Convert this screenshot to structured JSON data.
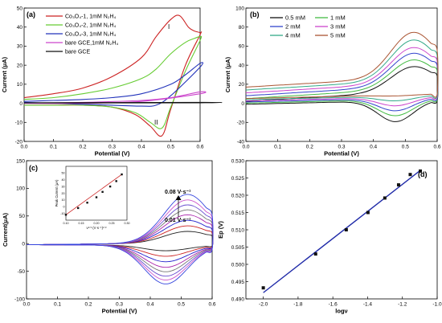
{
  "figure": {
    "panel_labels": [
      "(a)",
      "(b)",
      "(c)",
      "(d)"
    ]
  },
  "chart_data": [
    {
      "panel": "(a)",
      "type": "line",
      "xlabel": "Potential (V)",
      "ylabel": "Current (μA)",
      "xlim": [
        0.0,
        0.6
      ],
      "ylim": [
        -20,
        50
      ],
      "xticks": [
        "0.0",
        "0.1",
        "0.2",
        "0.3",
        "0.4",
        "0.5",
        "0.6"
      ],
      "yticks": [
        "-20",
        "-10",
        "0",
        "10",
        "20",
        "30",
        "40",
        "50"
      ],
      "legend": "top-left",
      "annotations": [
        "I",
        "II"
      ],
      "series": [
        {
          "name": "Co₃O₄-1,   1mM N₂H₄",
          "color": "#cc2222",
          "anodic": {
            "x": [
              0.0,
              0.1,
              0.2,
              0.3,
              0.4,
              0.45,
              0.5,
              0.53,
              0.56,
              0.58,
              0.6
            ],
            "y": [
              3,
              5,
              8,
              14,
              24,
              35,
              44,
              46,
              40,
              38,
              37
            ]
          },
          "cathodic": {
            "x": [
              0.6,
              0.55,
              0.5,
              0.47,
              0.43,
              0.38,
              0.3,
              0.2,
              0.1,
              0.0
            ],
            "y": [
              36,
              20,
              -3,
              -17,
              -12,
              -6,
              -2,
              -1,
              -1,
              -1
            ]
          }
        },
        {
          "name": "Co₃O₄-2,   1mM N₂H₄",
          "color": "#66cc33",
          "anodic": {
            "x": [
              0.0,
              0.1,
              0.2,
              0.3,
              0.4,
              0.45,
              0.5,
              0.55,
              0.58,
              0.6
            ],
            "y": [
              2,
              3,
              5,
              8,
              13,
              18,
              26,
              32,
              34,
              35
            ]
          },
          "cathodic": {
            "x": [
              0.6,
              0.55,
              0.5,
              0.47,
              0.43,
              0.38,
              0.3,
              0.2,
              0.1,
              0.0
            ],
            "y": [
              33,
              17,
              -2,
              -13,
              -10,
              -5,
              -2,
              -1,
              -1,
              -1
            ]
          }
        },
        {
          "name": "Co₃O₄-3,   1mM N₂H₄",
          "color": "#2233bb",
          "anodic": {
            "x": [
              0.0,
              0.1,
              0.2,
              0.3,
              0.4,
              0.5,
              0.55,
              0.6
            ],
            "y": [
              1,
              1.5,
              2,
              3,
              5,
              10,
              15,
              21
            ]
          },
          "cathodic": {
            "x": [
              0.6,
              0.5,
              0.45,
              0.4,
              0.3,
              0.2,
              0.1,
              0.0
            ],
            "y": [
              19,
              4,
              -1,
              -1.5,
              -1,
              -0.5,
              0,
              0.5
            ]
          }
        },
        {
          "name": "bare GCE,1mM N₂H₄",
          "color": "#cc44cc",
          "anodic": {
            "x": [
              0.0,
              0.2,
              0.4,
              0.5,
              0.6
            ],
            "y": [
              0,
              0.5,
              1.5,
              3,
              6
            ]
          },
          "cathodic": {
            "x": [
              0.6,
              0.4,
              0.2,
              0.0
            ],
            "y": [
              5,
              1,
              0,
              0
            ]
          }
        },
        {
          "name": "bare GCE",
          "color": "#111111",
          "anodic": {
            "x": [
              0.0,
              0.6
            ],
            "y": [
              0.3,
              0.5
            ]
          },
          "cathodic": {
            "x": [
              0.6,
              0.0
            ],
            "y": [
              0.3,
              0.2
            ]
          }
        }
      ]
    },
    {
      "panel": "(b)",
      "type": "line",
      "xlabel": "Potential (V)",
      "ylabel": "Current (μA)",
      "xlim": [
        0.0,
        0.6
      ],
      "ylim": [
        -40,
        100
      ],
      "xticks": [
        "0.0",
        "0.1",
        "0.2",
        "0.3",
        "0.4",
        "0.5",
        "0.6"
      ],
      "yticks": [
        "-40",
        "-20",
        "0",
        "20",
        "40",
        "60",
        "80",
        "100"
      ],
      "legend": "top-left",
      "series": [
        {
          "name": "0.5 mM",
          "color": "#111111",
          "anodic_peak": 40,
          "cathodic_peak": -20
        },
        {
          "name": "1 mM",
          "color": "#44bb44",
          "anodic_peak": 47,
          "cathodic_peak": -15
        },
        {
          "name": "2 mM",
          "color": "#3344cc",
          "anodic_peak": 54,
          "cathodic_peak": -11
        },
        {
          "name": "3 mM",
          "color": "#cc44cc",
          "anodic_peak": 60,
          "cathodic_peak": -7
        },
        {
          "name": "4 mM",
          "color": "#33aa88",
          "anodic_peak": 68,
          "cathodic_peak": -3
        },
        {
          "name": "5 mM",
          "color": "#aa5533",
          "anodic_peak": 76,
          "cathodic_peak": 1
        }
      ]
    },
    {
      "panel": "(c)",
      "type": "line",
      "xlabel": "Potential (V)",
      "ylabel": "Current(μA)",
      "xlim": [
        0.0,
        0.6
      ],
      "ylim": [
        -100,
        150
      ],
      "xticks": [
        "0.0",
        "0.1",
        "0.2",
        "0.3",
        "0.4",
        "0.5",
        "0.6"
      ],
      "yticks": [
        "-100",
        "-50",
        "0",
        "50",
        "100",
        "150"
      ],
      "annotations": [
        "0.08 V·s⁻¹",
        "0.01 V·s⁻¹"
      ],
      "scan_rate_curves": {
        "anodic_peaks": [
          25,
          35,
          45,
          55,
          64,
          73,
          82,
          92
        ],
        "cathodic_peaks": [
          -12,
          -22,
          -32,
          -42,
          -50,
          -58,
          -65,
          -72
        ]
      },
      "inset": {
        "type": "scatter",
        "xlabel": "ν¹ᐟ² (V·s⁻¹)¹ᐟ²",
        "ylabel": "Peak Current (μA)",
        "xlim": [
          0.1,
          0.3
        ],
        "ylim": [
          -20,
          60
        ],
        "xticks": [
          "0.10",
          "0.15",
          "0.20",
          "0.25",
          "0.30"
        ],
        "yticks": [
          "-10",
          "0",
          "10",
          "20",
          "30",
          "40",
          "50"
        ],
        "x": [
          0.1,
          0.14,
          0.17,
          0.2,
          0.22,
          0.245,
          0.265,
          0.283
        ],
        "y": [
          -12,
          -2,
          6,
          14,
          22,
          30,
          38,
          48
        ]
      }
    },
    {
      "panel": "(d)",
      "type": "scatter",
      "xlabel": "logν",
      "ylabel": "Ep (V)",
      "xlim": [
        -2.1,
        -1.0
      ],
      "ylim": [
        0.49,
        0.53
      ],
      "xticks": [
        "-2.0",
        "-1.8",
        "-1.6",
        "-1.4",
        "-1.2",
        "-1.0"
      ],
      "yticks": [
        "0.490",
        "0.495",
        "0.500",
        "0.505",
        "0.510",
        "0.515",
        "0.520",
        "0.525",
        "0.530"
      ],
      "x": [
        -2.0,
        -1.699,
        -1.523,
        -1.398,
        -1.301,
        -1.222,
        -1.155,
        -1.097
      ],
      "y": [
        0.4932,
        0.503,
        0.51,
        0.515,
        0.5192,
        0.523,
        0.526,
        0.527
      ],
      "fit": {
        "x": [
          -2.0,
          -1.097
        ],
        "y": [
          0.4918,
          0.5272
        ]
      }
    }
  ]
}
